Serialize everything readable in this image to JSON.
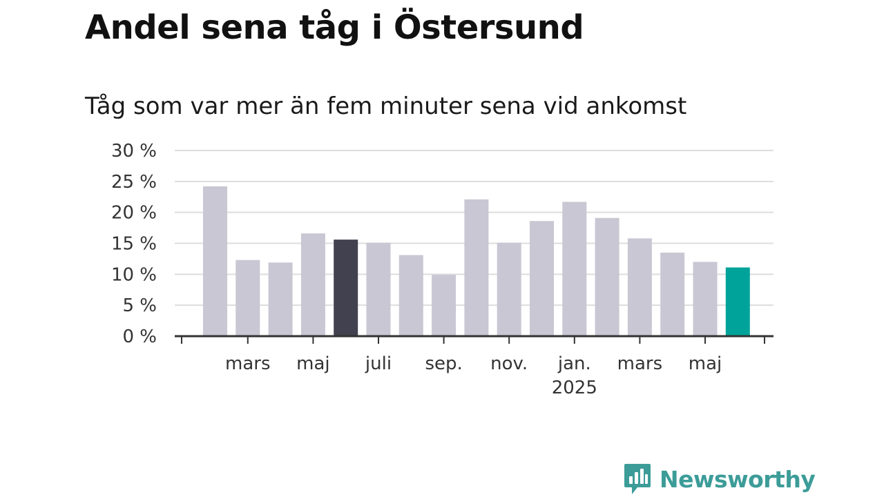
{
  "title": "Andel sena tåg i Östersund",
  "subtitle": "Tåg som var mer än fem minuter sena vid ankomst",
  "brand": {
    "name": "Newsworthy",
    "color": "#3c9c98",
    "icon": "newsworthy-logo-icon"
  },
  "chart_data": {
    "type": "bar",
    "ylim": [
      0,
      30
    ],
    "yticks": [
      0,
      5,
      10,
      15,
      20,
      25,
      30
    ],
    "ytick_labels": [
      "0 %",
      "5 %",
      "10 %",
      "15 %",
      "20 %",
      "25 %",
      "30 %"
    ],
    "grid": true,
    "values": [
      24.2,
      12.3,
      11.9,
      16.6,
      15.6,
      15.1,
      13.1,
      9.9,
      22.1,
      15.1,
      18.6,
      21.7,
      19.1,
      15.8,
      13.5,
      12.0,
      11.1
    ],
    "highlight": {
      "dark_index": 4,
      "accent_index": 16
    },
    "colors": {
      "default": "#c8c7d3",
      "dark": "#42414f",
      "accent": "#00a39a",
      "grid": "#dddddd",
      "axis": "#333333"
    },
    "xticks": [
      {
        "label": "mars",
        "bar": 1
      },
      {
        "label": "maj",
        "bar": 3
      },
      {
        "label": "juli",
        "bar": 5
      },
      {
        "label": "sep.",
        "bar": 7
      },
      {
        "label": "nov.",
        "bar": 9
      },
      {
        "label": "jan.",
        "bar": 11,
        "sublabel": "2025"
      },
      {
        "label": "mars",
        "bar": 13
      },
      {
        "label": "maj",
        "bar": 15
      }
    ]
  }
}
